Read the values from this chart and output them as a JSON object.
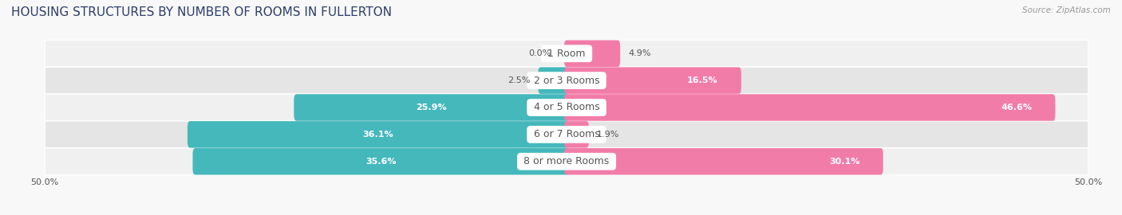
{
  "title": "HOUSING STRUCTURES BY NUMBER OF ROOMS IN FULLERTON",
  "source": "Source: ZipAtlas.com",
  "categories": [
    "1 Room",
    "2 or 3 Rooms",
    "4 or 5 Rooms",
    "6 or 7 Rooms",
    "8 or more Rooms"
  ],
  "owner_values": [
    0.0,
    2.5,
    25.9,
    36.1,
    35.6
  ],
  "renter_values": [
    4.9,
    16.5,
    46.6,
    1.9,
    30.1
  ],
  "owner_color": "#45b8bc",
  "renter_color": "#f27ca8",
  "label_color_dark": "#555555",
  "label_color_light": "#ffffff",
  "row_bg_even": "#f0f0f0",
  "row_bg_odd": "#e5e5e5",
  "figure_bg": "#f8f8f8",
  "center_label_bg": "#ffffff",
  "axis_limit": 50.0,
  "bar_height": 0.52,
  "title_fontsize": 11,
  "cat_label_fontsize": 9,
  "val_label_fontsize": 8,
  "tick_fontsize": 8,
  "source_fontsize": 7.5,
  "inside_label_threshold": 8.0
}
